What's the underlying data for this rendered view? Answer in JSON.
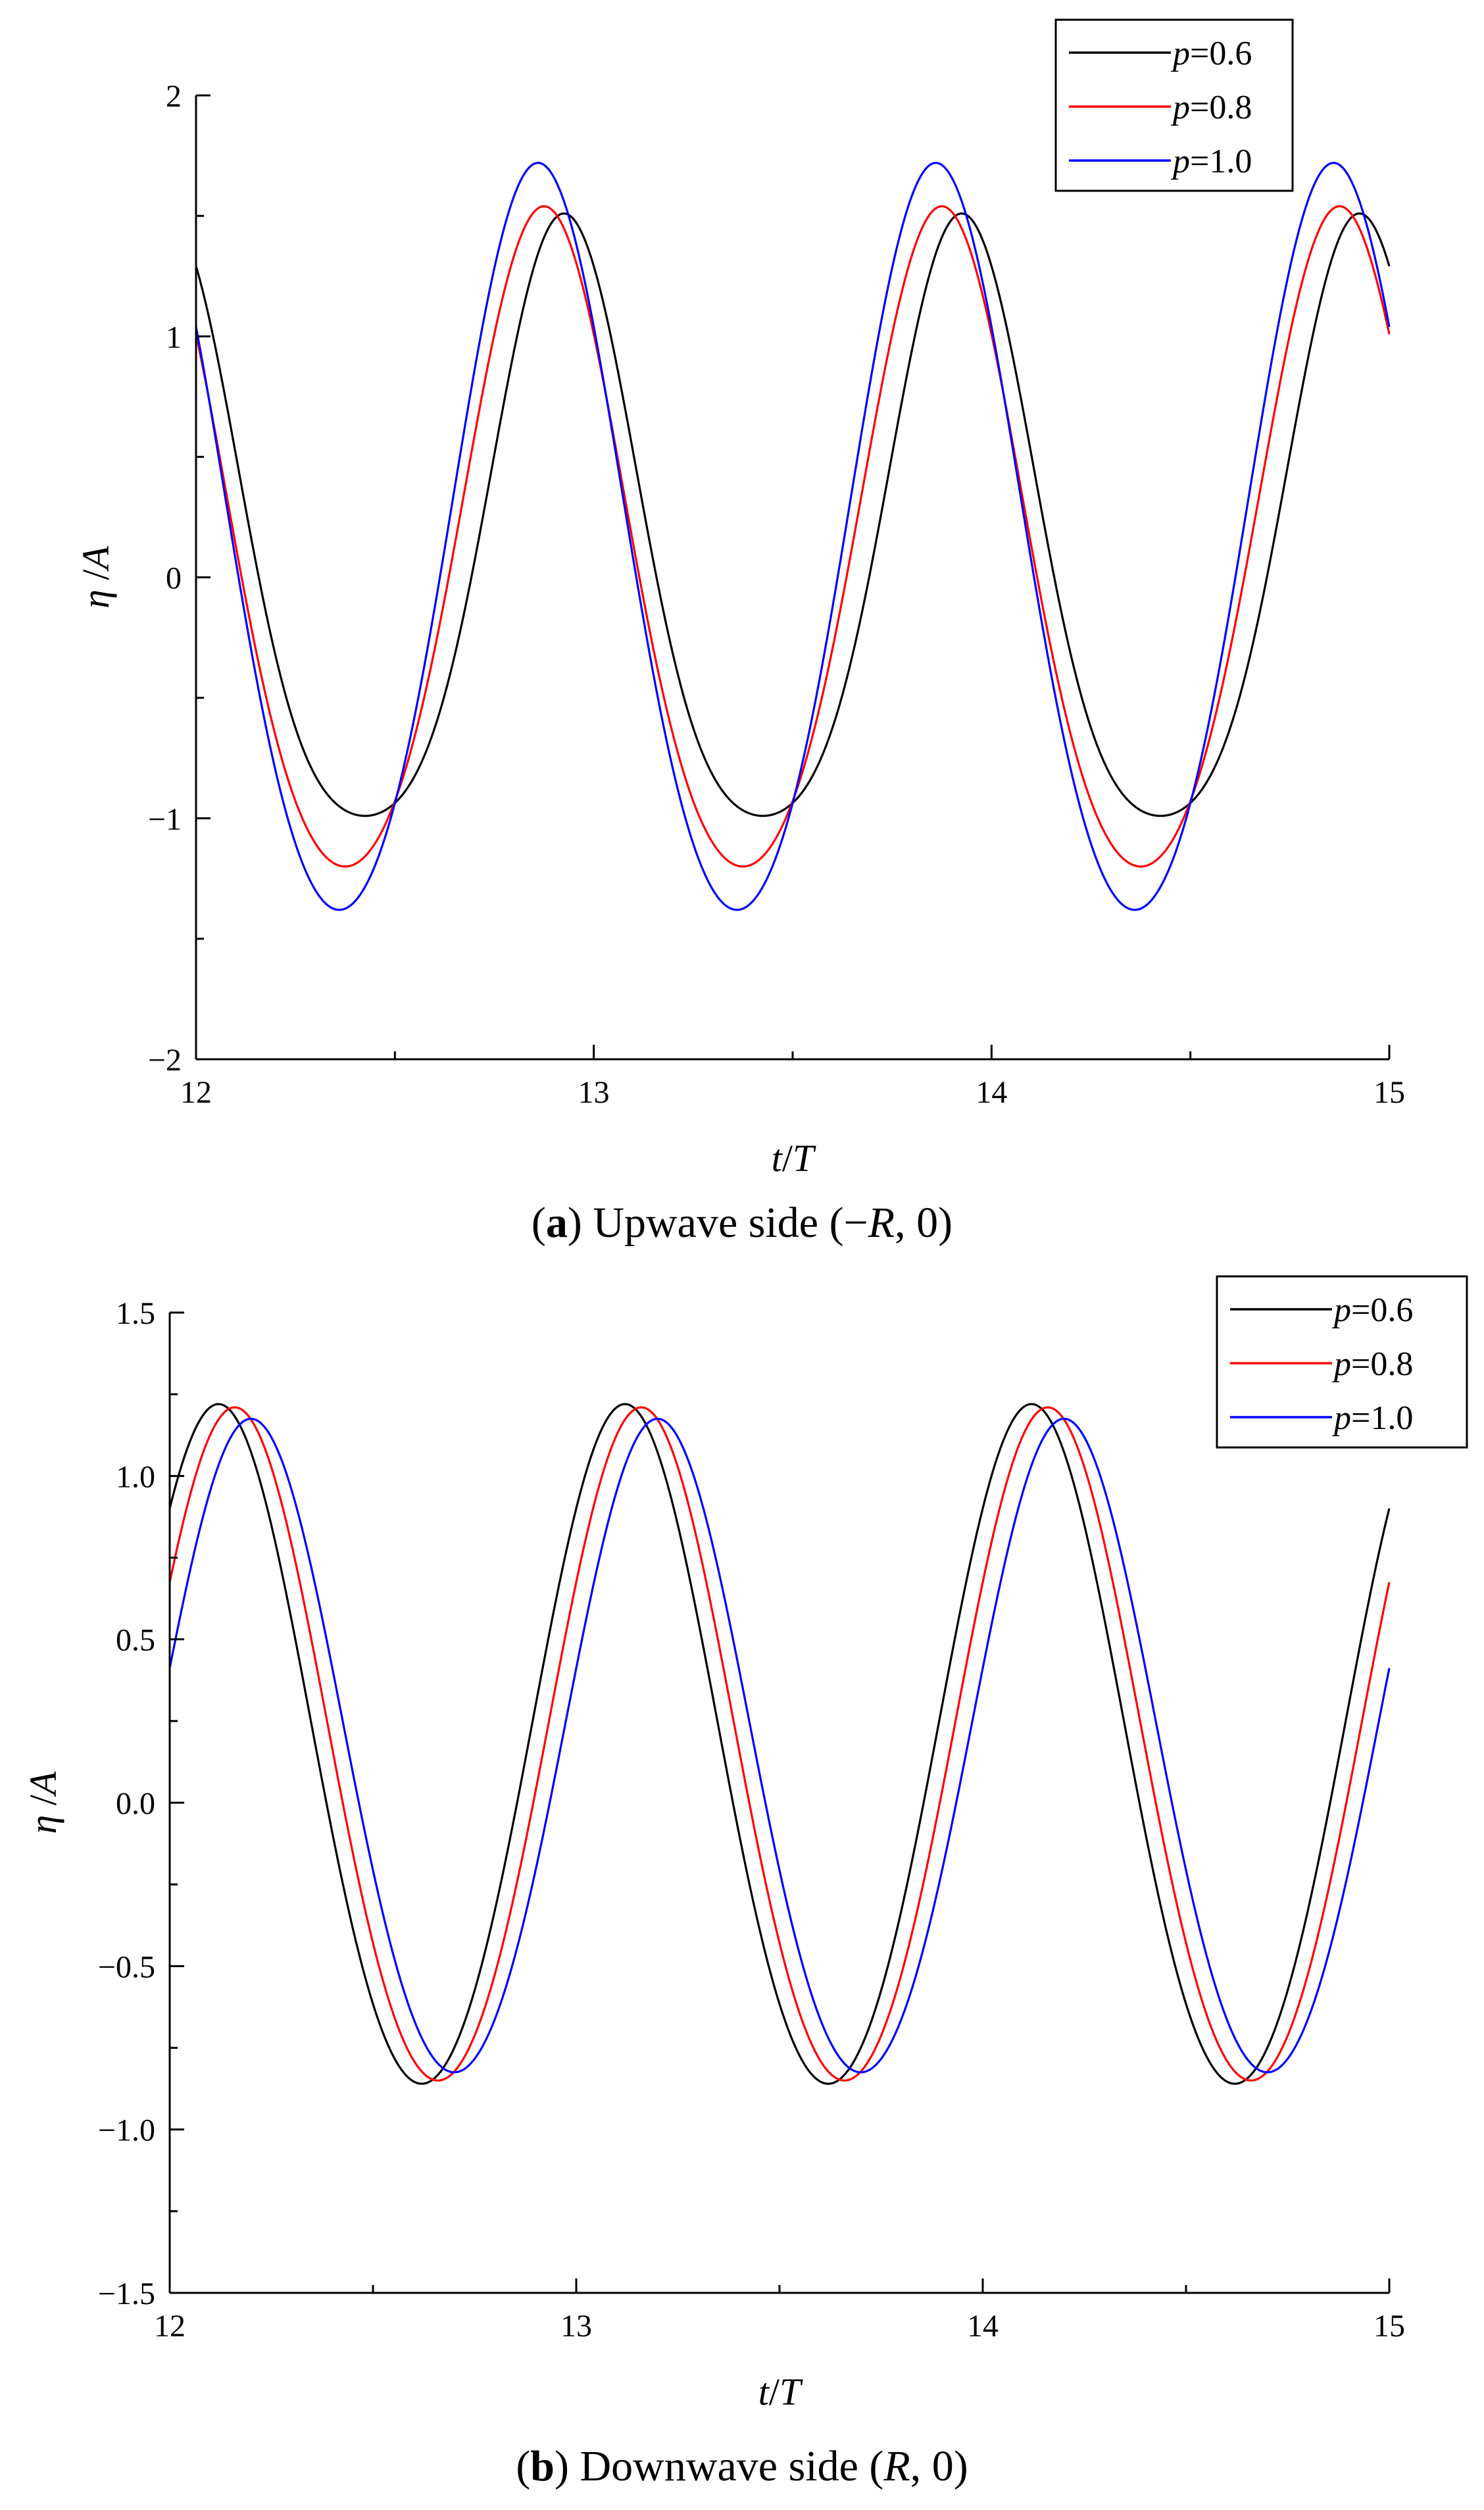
{
  "chart_data": [
    {
      "type": "line",
      "caption_letter": "a",
      "caption_text": "Upwave side (−",
      "caption_var": "R",
      "caption_tail": ", 0)",
      "xlabel_var1": "t",
      "xlabel_sep": "/",
      "xlabel_var2": "T",
      "ylabel_var1": "η",
      "ylabel_sep": " /",
      "ylabel_var2": "A",
      "xlim": [
        12,
        15
      ],
      "ylim": [
        -2,
        2
      ],
      "x_ticks": [
        12,
        13,
        14,
        15
      ],
      "x_tick_labels": [
        "12",
        "13",
        "14",
        "15"
      ],
      "y_ticks": [
        -2,
        -1,
        0,
        1,
        2
      ],
      "y_tick_labels": [
        "−2",
        "−1",
        "0",
        "1",
        "2"
      ],
      "legend_position": "top-right",
      "series": [
        {
          "name_var": "p",
          "name_value": "=0.6",
          "color": "#000000",
          "mean": 0.06,
          "amp1": 1.25,
          "amp2": 0.2,
          "phase_peak": 0.925
        },
        {
          "name_var": "p",
          "name_value": "=0.8",
          "color": "#ff0000",
          "mean": 0.04,
          "amp1": 1.37,
          "amp2": 0.13,
          "phase_peak": 0.875
        },
        {
          "name_var": "p",
          "name_value": "=1.0",
          "color": "#0000ff",
          "mean": 0.07,
          "amp1": 1.55,
          "amp2": 0.1,
          "phase_peak": 0.86
        }
      ]
    },
    {
      "type": "line",
      "caption_letter": "b",
      "caption_text": "Downwave side (",
      "caption_var": "R",
      "caption_tail": ", 0)",
      "xlabel_var1": "t",
      "xlabel_sep": "/",
      "xlabel_var2": "T",
      "ylabel_var1": "η",
      "ylabel_sep": " /",
      "ylabel_var2": "A",
      "xlim": [
        12,
        15
      ],
      "ylim": [
        -1.5,
        1.5
      ],
      "x_ticks": [
        12,
        13,
        14,
        15
      ],
      "x_tick_labels": [
        "12",
        "13",
        "14",
        "15"
      ],
      "y_ticks": [
        -1.5,
        -1.0,
        -0.5,
        0.0,
        0.5,
        1.0,
        1.5
      ],
      "y_tick_labels": [
        "−1.5",
        "−1.0",
        "−0.5",
        "0.0",
        "0.5",
        "1.0",
        "1.5"
      ],
      "legend_position": "top-right",
      "series": [
        {
          "name_var": "p",
          "name_value": "=0.6",
          "color": "#000000",
          "mean": 0.14,
          "amp1": 1.04,
          "amp2": 0.04,
          "phase_peak": 0.12
        },
        {
          "name_var": "p",
          "name_value": "=0.8",
          "color": "#ff0000",
          "mean": 0.14,
          "amp1": 1.03,
          "amp2": 0.04,
          "phase_peak": 0.16
        },
        {
          "name_var": "p",
          "name_value": "=1.0",
          "color": "#0000ff",
          "mean": 0.135,
          "amp1": 1.0,
          "amp2": 0.04,
          "phase_peak": 0.2
        }
      ]
    }
  ]
}
